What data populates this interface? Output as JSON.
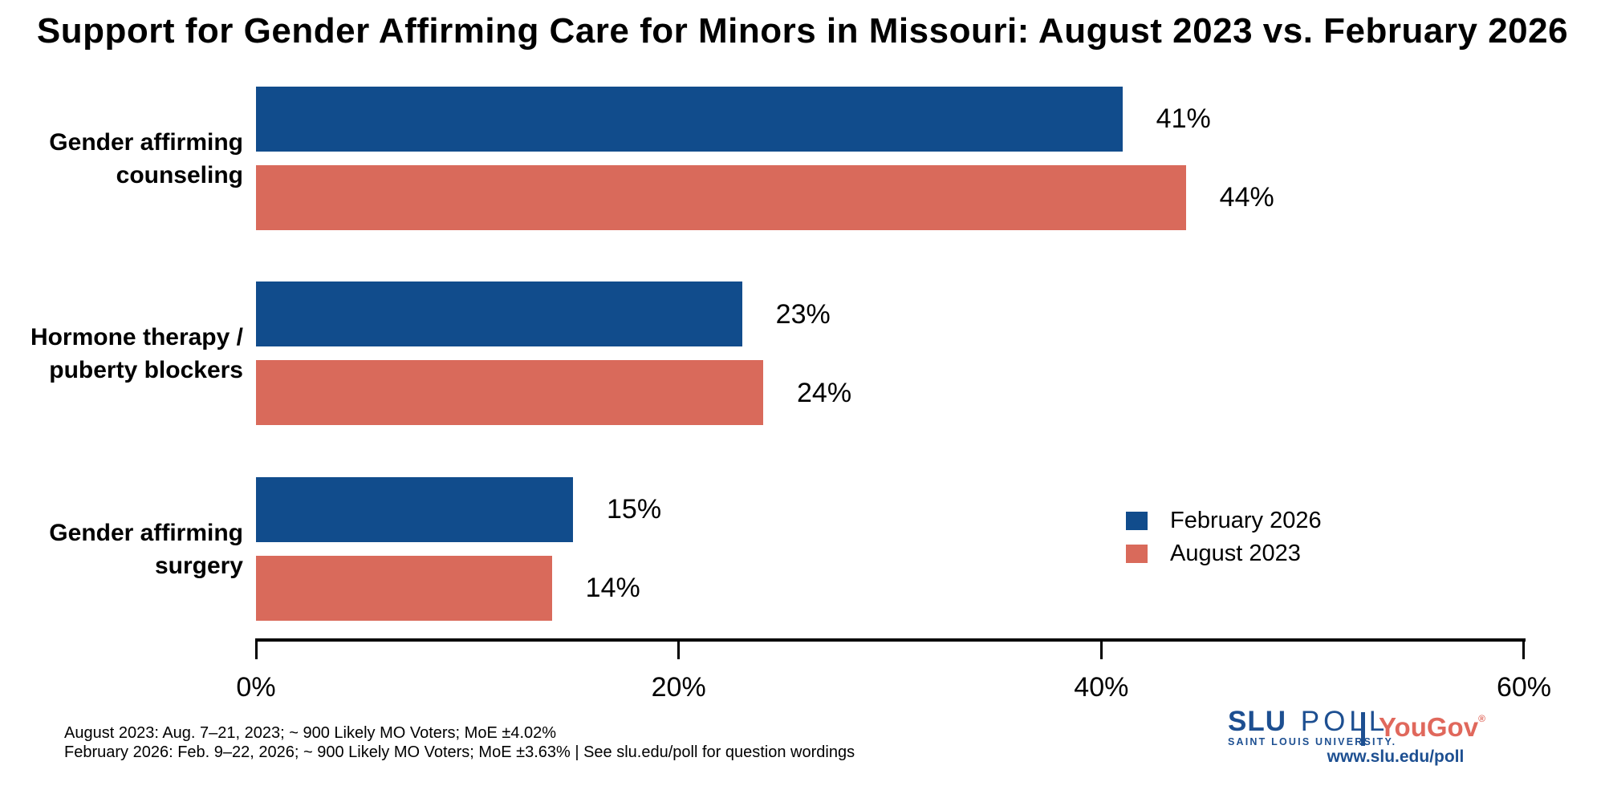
{
  "chart_data": {
    "type": "bar",
    "orientation": "horizontal",
    "title": "Support for Gender Affirming Care for Minors in Missouri: August 2023 vs. February 2026",
    "categories": [
      "Gender affirming counseling",
      "Hormone therapy / puberty blockers",
      "Gender affirming surgery"
    ],
    "category_label_lines": [
      [
        "Gender affirming",
        "counseling"
      ],
      [
        "Hormone therapy /",
        "puberty blockers"
      ],
      [
        "Gender affirming",
        "surgery"
      ]
    ],
    "series": [
      {
        "name": "February 2026",
        "color": "#114C8C",
        "values": [
          41,
          23,
          15
        ]
      },
      {
        "name": "August 2023",
        "color": "#D96A5B",
        "values": [
          44,
          24,
          14
        ]
      }
    ],
    "value_suffix": "%",
    "xlim": [
      0,
      60
    ],
    "x_ticks": [
      "0%",
      "20%",
      "40%",
      "60%"
    ],
    "x_tick_values": [
      0,
      20,
      40,
      60
    ],
    "grid": "off",
    "legend_position": "right-middle"
  },
  "legend": {
    "items": [
      {
        "label": "February 2026",
        "color": "#114C8C"
      },
      {
        "label": "August 2023",
        "color": "#D96A5B"
      }
    ]
  },
  "footnotes": {
    "line1": "August 2023: Aug. 7–21, 2023; ~ 900 Likely MO Voters; MoE ±4.02%",
    "line2": "February 2026: Feb. 9–22, 2026; ~ 900 Likely MO Voters; MoE ±3.63%  |  See slu.edu/poll for question wordings"
  },
  "branding": {
    "slu": "SLU",
    "poll": "POLL",
    "subtitle": "SAINT LOUIS UNIVERSITY.",
    "partner": "YouGov",
    "partner_mark": "®",
    "url": "www.slu.edu/poll",
    "slu_blue": "#1D4F91",
    "yougov_red": "#E0685C"
  }
}
